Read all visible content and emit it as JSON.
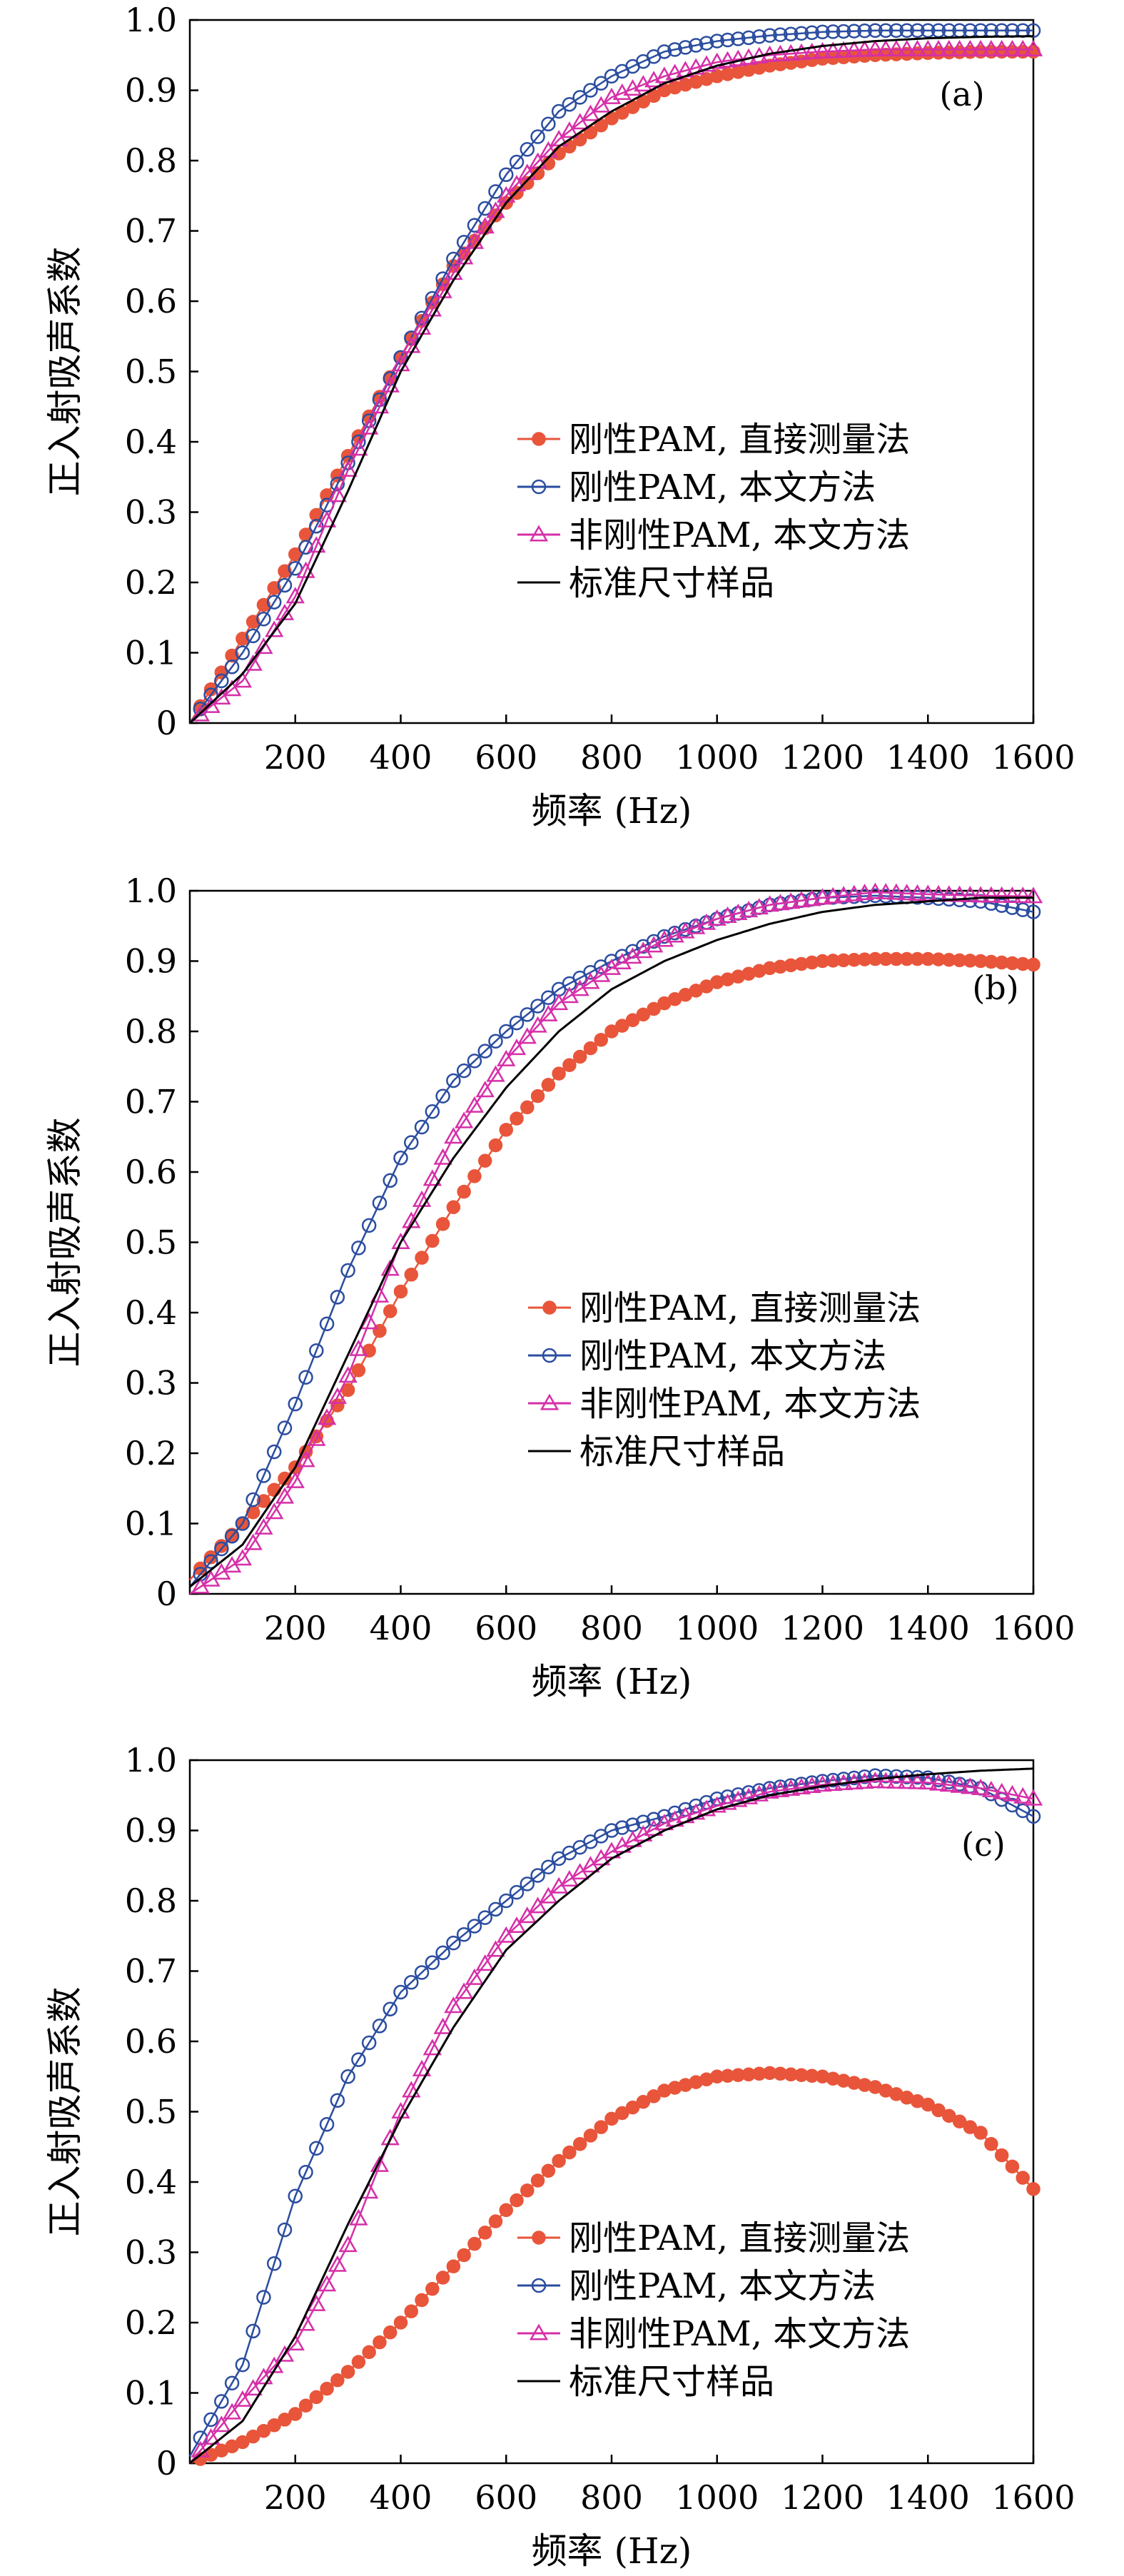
{
  "chart_data": [
    {
      "type": "line",
      "panel_label": "(a)",
      "xlabel": "频率 (Hz)",
      "ylabel": "正入射吸声系数",
      "xlim": [
        0,
        1600
      ],
      "ylim": [
        0,
        1.0
      ],
      "x_ticks": [
        "200",
        "400",
        "600",
        "800",
        "1000",
        "1200",
        "1400",
        "1600"
      ],
      "y_ticks": [
        "0",
        "0.1",
        "0.2",
        "0.3",
        "0.4",
        "0.5",
        "0.6",
        "0.7",
        "0.8",
        "0.9",
        "1.0"
      ],
      "grid": false,
      "legend_position": "center-right",
      "series": [
        {
          "name": "刚性PAM, 直接测量法",
          "marker": "filled-circle",
          "color": "#e8553a",
          "points": [
            [
              0,
              0
            ],
            [
              100,
              0.12
            ],
            [
              200,
              0.24
            ],
            [
              300,
              0.38
            ],
            [
              400,
              0.52
            ],
            [
              500,
              0.65
            ],
            [
              600,
              0.74
            ],
            [
              700,
              0.81
            ],
            [
              800,
              0.86
            ],
            [
              900,
              0.9
            ],
            [
              1000,
              0.92
            ],
            [
              1100,
              0.935
            ],
            [
              1200,
              0.945
            ],
            [
              1300,
              0.95
            ],
            [
              1400,
              0.953
            ],
            [
              1500,
              0.955
            ],
            [
              1600,
              0.955
            ]
          ]
        },
        {
          "name": "刚性PAM, 本文方法",
          "marker": "open-circle",
          "color": "#2b4da0",
          "points": [
            [
              0,
              0
            ],
            [
              100,
              0.1
            ],
            [
              200,
              0.22
            ],
            [
              300,
              0.37
            ],
            [
              400,
              0.52
            ],
            [
              500,
              0.66
            ],
            [
              600,
              0.78
            ],
            [
              700,
              0.87
            ],
            [
              800,
              0.92
            ],
            [
              900,
              0.955
            ],
            [
              1000,
              0.97
            ],
            [
              1100,
              0.978
            ],
            [
              1200,
              0.983
            ],
            [
              1300,
              0.985
            ],
            [
              1400,
              0.985
            ],
            [
              1500,
              0.985
            ],
            [
              1600,
              0.985
            ]
          ]
        },
        {
          "name": "非刚性PAM, 本文方法",
          "marker": "open-triangle",
          "color": "#d62fa8",
          "points": [
            [
              0,
              0
            ],
            [
              100,
              0.06
            ],
            [
              200,
              0.18
            ],
            [
              300,
              0.36
            ],
            [
              400,
              0.51
            ],
            [
              500,
              0.64
            ],
            [
              600,
              0.75
            ],
            [
              700,
              0.83
            ],
            [
              800,
              0.89
            ],
            [
              900,
              0.92
            ],
            [
              1000,
              0.94
            ],
            [
              1100,
              0.95
            ],
            [
              1200,
              0.955
            ],
            [
              1300,
              0.958
            ],
            [
              1400,
              0.958
            ],
            [
              1500,
              0.958
            ],
            [
              1600,
              0.958
            ]
          ]
        },
        {
          "name": "标准尺寸样品",
          "marker": "none",
          "color": "#000000",
          "points": [
            [
              0,
              0
            ],
            [
              100,
              0.07
            ],
            [
              200,
              0.17
            ],
            [
              300,
              0.33
            ],
            [
              400,
              0.5
            ],
            [
              500,
              0.63
            ],
            [
              600,
              0.74
            ],
            [
              700,
              0.82
            ],
            [
              800,
              0.87
            ],
            [
              900,
              0.91
            ],
            [
              1000,
              0.935
            ],
            [
              1100,
              0.952
            ],
            [
              1200,
              0.963
            ],
            [
              1300,
              0.97
            ],
            [
              1400,
              0.974
            ],
            [
              1500,
              0.976
            ],
            [
              1600,
              0.977
            ]
          ]
        }
      ]
    },
    {
      "type": "line",
      "panel_label": "(b)",
      "xlabel": "频率 (Hz)",
      "ylabel": "正入射吸声系数",
      "xlim": [
        0,
        1600
      ],
      "ylim": [
        0,
        1.0
      ],
      "x_ticks": [
        "200",
        "400",
        "600",
        "800",
        "1000",
        "1200",
        "1400",
        "1600"
      ],
      "y_ticks": [
        "0",
        "0.1",
        "0.2",
        "0.3",
        "0.4",
        "0.5",
        "0.6",
        "0.7",
        "0.8",
        "0.9",
        "1.0"
      ],
      "grid": false,
      "legend_position": "bottom-right",
      "series": [
        {
          "name": "刚性PAM, 直接测量法",
          "marker": "filled-circle",
          "color": "#e8553a",
          "points": [
            [
              0,
              0.02
            ],
            [
              100,
              0.1
            ],
            [
              200,
              0.18
            ],
            [
              300,
              0.29
            ],
            [
              400,
              0.43
            ],
            [
              500,
              0.55
            ],
            [
              600,
              0.66
            ],
            [
              700,
              0.74
            ],
            [
              800,
              0.8
            ],
            [
              900,
              0.84
            ],
            [
              1000,
              0.87
            ],
            [
              1100,
              0.89
            ],
            [
              1200,
              0.9
            ],
            [
              1300,
              0.903
            ],
            [
              1400,
              0.903
            ],
            [
              1500,
              0.9
            ],
            [
              1600,
              0.895
            ]
          ]
        },
        {
          "name": "刚性PAM, 本文方法",
          "marker": "open-circle",
          "color": "#2b4da0",
          "points": [
            [
              0,
              0.01
            ],
            [
              100,
              0.1
            ],
            [
              200,
              0.27
            ],
            [
              300,
              0.46
            ],
            [
              400,
              0.62
            ],
            [
              500,
              0.73
            ],
            [
              600,
              0.8
            ],
            [
              700,
              0.86
            ],
            [
              800,
              0.9
            ],
            [
              900,
              0.935
            ],
            [
              1000,
              0.96
            ],
            [
              1100,
              0.98
            ],
            [
              1200,
              0.99
            ],
            [
              1300,
              0.993
            ],
            [
              1400,
              0.99
            ],
            [
              1500,
              0.985
            ],
            [
              1600,
              0.97
            ]
          ]
        },
        {
          "name": "非刚性PAM, 本文方法",
          "marker": "open-triangle",
          "color": "#d62fa8",
          "points": [
            [
              0,
              0
            ],
            [
              100,
              0.05
            ],
            [
              200,
              0.16
            ],
            [
              300,
              0.31
            ],
            [
              400,
              0.5
            ],
            [
              500,
              0.65
            ],
            [
              600,
              0.76
            ],
            [
              700,
              0.84
            ],
            [
              800,
              0.89
            ],
            [
              900,
              0.93
            ],
            [
              1000,
              0.96
            ],
            [
              1100,
              0.98
            ],
            [
              1200,
              0.99
            ],
            [
              1300,
              0.998
            ],
            [
              1400,
              0.995
            ],
            [
              1500,
              0.993
            ],
            [
              1600,
              0.992
            ]
          ]
        },
        {
          "name": "标准尺寸样品",
          "marker": "none",
          "color": "#000000",
          "points": [
            [
              0,
              0.01
            ],
            [
              100,
              0.07
            ],
            [
              200,
              0.18
            ],
            [
              300,
              0.34
            ],
            [
              400,
              0.5
            ],
            [
              500,
              0.62
            ],
            [
              600,
              0.72
            ],
            [
              700,
              0.8
            ],
            [
              800,
              0.86
            ],
            [
              900,
              0.9
            ],
            [
              1000,
              0.93
            ],
            [
              1100,
              0.953
            ],
            [
              1200,
              0.97
            ],
            [
              1300,
              0.98
            ],
            [
              1400,
              0.985
            ],
            [
              1500,
              0.99
            ],
            [
              1600,
              0.99
            ]
          ]
        }
      ]
    },
    {
      "type": "line",
      "panel_label": "(c)",
      "xlabel": "频率 (Hz)",
      "ylabel": "正入射吸声系数",
      "xlim": [
        0,
        1600
      ],
      "ylim": [
        0,
        1.0
      ],
      "x_ticks": [
        "200",
        "400",
        "600",
        "800",
        "1000",
        "1200",
        "1400",
        "1600"
      ],
      "y_ticks": [
        "0",
        "0.1",
        "0.2",
        "0.3",
        "0.4",
        "0.5",
        "0.6",
        "0.7",
        "0.8",
        "0.9",
        "1.0"
      ],
      "grid": false,
      "legend_position": "bottom-right",
      "series": [
        {
          "name": "刚性PAM, 直接测量法",
          "marker": "filled-circle",
          "color": "#e8553a",
          "points": [
            [
              0,
              0
            ],
            [
              100,
              0.03
            ],
            [
              200,
              0.07
            ],
            [
              300,
              0.13
            ],
            [
              400,
              0.2
            ],
            [
              500,
              0.28
            ],
            [
              600,
              0.36
            ],
            [
              700,
              0.43
            ],
            [
              800,
              0.49
            ],
            [
              900,
              0.53
            ],
            [
              1000,
              0.55
            ],
            [
              1100,
              0.555
            ],
            [
              1200,
              0.55
            ],
            [
              1300,
              0.535
            ],
            [
              1400,
              0.51
            ],
            [
              1500,
              0.47
            ],
            [
              1600,
              0.39
            ]
          ]
        },
        {
          "name": "刚性PAM, 本文方法",
          "marker": "open-circle",
          "color": "#2b4da0",
          "points": [
            [
              0,
              0.01
            ],
            [
              100,
              0.14
            ],
            [
              200,
              0.38
            ],
            [
              300,
              0.55
            ],
            [
              400,
              0.67
            ],
            [
              500,
              0.74
            ],
            [
              600,
              0.8
            ],
            [
              700,
              0.86
            ],
            [
              800,
              0.9
            ],
            [
              900,
              0.92
            ],
            [
              1000,
              0.945
            ],
            [
              1100,
              0.96
            ],
            [
              1200,
              0.97
            ],
            [
              1300,
              0.978
            ],
            [
              1400,
              0.975
            ],
            [
              1500,
              0.96
            ],
            [
              1600,
              0.92
            ]
          ]
        },
        {
          "name": "非刚性PAM, 本文方法",
          "marker": "open-triangle",
          "color": "#d62fa8",
          "points": [
            [
              0,
              0
            ],
            [
              100,
              0.09
            ],
            [
              200,
              0.17
            ],
            [
              300,
              0.31
            ],
            [
              400,
              0.5
            ],
            [
              500,
              0.65
            ],
            [
              600,
              0.75
            ],
            [
              700,
              0.82
            ],
            [
              800,
              0.87
            ],
            [
              900,
              0.91
            ],
            [
              1000,
              0.935
            ],
            [
              1100,
              0.955
            ],
            [
              1200,
              0.965
            ],
            [
              1300,
              0.97
            ],
            [
              1400,
              0.968
            ],
            [
              1500,
              0.96
            ],
            [
              1600,
              0.945
            ]
          ]
        },
        {
          "name": "标准尺寸样品",
          "marker": "none",
          "color": "#000000",
          "points": [
            [
              0,
              0
            ],
            [
              100,
              0.06
            ],
            [
              200,
              0.18
            ],
            [
              300,
              0.34
            ],
            [
              400,
              0.49
            ],
            [
              500,
              0.62
            ],
            [
              600,
              0.73
            ],
            [
              700,
              0.8
            ],
            [
              800,
              0.86
            ],
            [
              900,
              0.9
            ],
            [
              1000,
              0.93
            ],
            [
              1100,
              0.95
            ],
            [
              1200,
              0.963
            ],
            [
              1300,
              0.973
            ],
            [
              1400,
              0.98
            ],
            [
              1500,
              0.985
            ],
            [
              1600,
              0.988
            ]
          ]
        }
      ]
    }
  ]
}
